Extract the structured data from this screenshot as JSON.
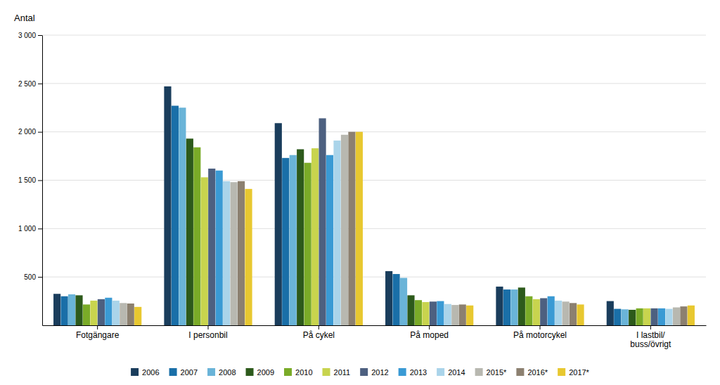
{
  "chart_data": {
    "type": "bar",
    "ylabel": "Antal",
    "categories": [
      "Fotgängare",
      "I personbil",
      "På cykel",
      "På moped",
      "På motorcykel",
      "I lastbil/\nbuss/övrigt"
    ],
    "series": [
      {
        "name": "2006",
        "color": "#1a3d5c",
        "values": [
          325,
          2470,
          2090,
          560,
          400,
          250
        ]
      },
      {
        "name": "2007",
        "color": "#1a6fa8",
        "values": [
          300,
          2270,
          1730,
          530,
          370,
          170
        ]
      },
      {
        "name": "2008",
        "color": "#6ab4d8",
        "values": [
          320,
          2250,
          1760,
          490,
          370,
          165
        ]
      },
      {
        "name": "2009",
        "color": "#2d5a1b",
        "values": [
          310,
          1930,
          1820,
          310,
          390,
          160
        ]
      },
      {
        "name": "2010",
        "color": "#7aab28",
        "values": [
          215,
          1840,
          1680,
          260,
          300,
          175
        ]
      },
      {
        "name": "2011",
        "color": "#c8d44e",
        "values": [
          255,
          1530,
          1830,
          240,
          270,
          175
        ]
      },
      {
        "name": "2012",
        "color": "#4d6080",
        "values": [
          270,
          1620,
          2140,
          245,
          280,
          175
        ]
      },
      {
        "name": "2013",
        "color": "#3a9ad4",
        "values": [
          285,
          1600,
          1760,
          250,
          300,
          175
        ]
      },
      {
        "name": "2014",
        "color": "#aad4ea",
        "values": [
          255,
          1490,
          1910,
          220,
          255,
          170
        ]
      },
      {
        "name": "2015*",
        "color": "#b8b8b0",
        "values": [
          230,
          1480,
          1970,
          210,
          245,
          185
        ]
      },
      {
        "name": "2016*",
        "color": "#8c8070",
        "values": [
          225,
          1490,
          2000,
          215,
          230,
          195
        ]
      },
      {
        "name": "2017*",
        "color": "#e8c830",
        "values": [
          190,
          1410,
          2000,
          205,
          215,
          205
        ]
      }
    ],
    "ylim": [
      0,
      3000
    ],
    "yticks": [
      500,
      {
        "value": 1000,
        "label": "1 000"
      },
      {
        "value": 1500,
        "label": "1 500"
      },
      {
        "value": 2000,
        "label": "2 000"
      },
      {
        "value": 2500,
        "label": "2 500"
      },
      {
        "value": 3000,
        "label": "3 000"
      }
    ],
    "grid": true,
    "legend": "bottom"
  }
}
